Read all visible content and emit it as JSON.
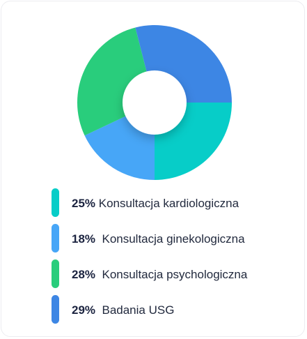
{
  "chart_data": {
    "type": "pie",
    "variant": "donut",
    "grid": false,
    "legend_placement": "bottom",
    "slices": [
      {
        "label": "Konsultacja kardiologiczna",
        "value": 25,
        "value_label": "25%",
        "color": "#07cdc8"
      },
      {
        "label": "Konsultacja ginekologiczna",
        "value": 18,
        "value_label": "18%",
        "color": "#47a6f7"
      },
      {
        "label": "Konsultacja psychologiczna",
        "value": 28,
        "value_label": "28%",
        "color": "#29cd7c"
      },
      {
        "label": "Badania USG",
        "value": 29,
        "value_label": "29%",
        "color": "#3d86e4"
      }
    ]
  }
}
